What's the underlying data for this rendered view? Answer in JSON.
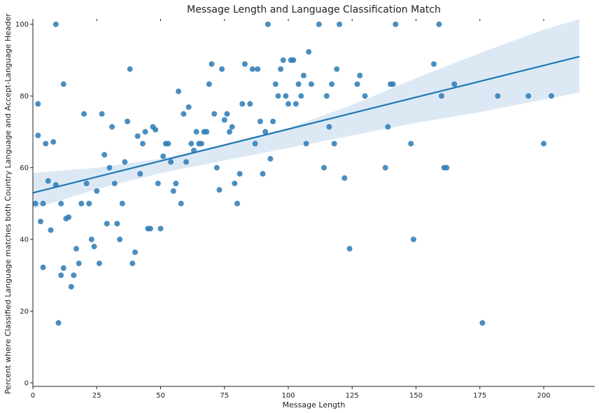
{
  "chart_data": {
    "type": "scatter",
    "title": "Message Length and Language Classification Match",
    "xlabel": "Message Length",
    "ylabel": "Percent where Classified Language matches both Country Language and Accept-Language Header",
    "xlim": [
      0,
      220
    ],
    "ylim": [
      -1,
      101.5
    ],
    "xticks": [
      0,
      25,
      50,
      75,
      100,
      125,
      150,
      175,
      200
    ],
    "yticks": [
      0,
      20,
      40,
      60,
      80,
      100
    ],
    "grid": false,
    "point_color": "#2a7ab5",
    "line_color": "#1f77b4",
    "band_color": "#dce9f5",
    "regression": {
      "x_range": [
        0,
        214
      ],
      "y_at_start": 53.0,
      "y_at_end": 91.0
    },
    "confidence_band": {
      "x": [
        0,
        25,
        50,
        75,
        100,
        125,
        150,
        175,
        200,
        214
      ],
      "lower": [
        48.5,
        54.0,
        58.5,
        62.0,
        65.5,
        69.0,
        72.5,
        75.5,
        79.0,
        81.0
      ],
      "upper": [
        58.5,
        60.0,
        62.5,
        66.5,
        71.0,
        77.5,
        85.0,
        92.0,
        98.5,
        101.5
      ]
    },
    "points": [
      [
        1,
        50
      ],
      [
        2,
        69
      ],
      [
        2,
        77.8
      ],
      [
        3,
        45
      ],
      [
        4,
        50
      ],
      [
        4,
        32.2
      ],
      [
        5,
        66.7
      ],
      [
        6,
        56.3
      ],
      [
        7,
        42.6
      ],
      [
        8,
        67.2
      ],
      [
        9,
        55.2
      ],
      [
        9,
        100
      ],
      [
        10,
        16.7
      ],
      [
        11,
        30
      ],
      [
        11,
        50
      ],
      [
        12,
        32
      ],
      [
        12,
        83.3
      ],
      [
        13,
        45.8
      ],
      [
        14,
        46.2
      ],
      [
        15,
        26.8
      ],
      [
        16,
        30
      ],
      [
        17,
        37.4
      ],
      [
        18,
        33.3
      ],
      [
        19,
        50
      ],
      [
        20,
        75
      ],
      [
        21,
        55.6
      ],
      [
        22,
        50
      ],
      [
        23,
        40
      ],
      [
        24,
        38
      ],
      [
        25,
        53.5
      ],
      [
        26,
        33.3
      ],
      [
        27,
        75
      ],
      [
        28,
        63.6
      ],
      [
        29,
        44.4
      ],
      [
        30,
        60
      ],
      [
        31,
        71.4
      ],
      [
        32,
        55.6
      ],
      [
        33,
        44.4
      ],
      [
        34,
        40
      ],
      [
        35,
        50
      ],
      [
        36,
        61.6
      ],
      [
        37,
        72.9
      ],
      [
        38,
        87.5
      ],
      [
        39,
        33.3
      ],
      [
        40,
        36.4
      ],
      [
        41,
        68.8
      ],
      [
        42,
        58.3
      ],
      [
        43,
        66.7
      ],
      [
        44,
        70
      ],
      [
        45,
        43
      ],
      [
        46,
        43
      ],
      [
        47,
        71.4
      ],
      [
        48,
        70.6
      ],
      [
        49,
        55.6
      ],
      [
        50,
        43
      ],
      [
        51,
        63.2
      ],
      [
        52,
        66.7
      ],
      [
        53,
        66.7
      ],
      [
        54,
        61.6
      ],
      [
        55,
        53.5
      ],
      [
        56,
        55.6
      ],
      [
        57,
        81.3
      ],
      [
        58,
        50
      ],
      [
        59,
        75
      ],
      [
        60,
        61.6
      ],
      [
        61,
        76.9
      ],
      [
        62,
        66.7
      ],
      [
        63,
        64.8
      ],
      [
        64,
        70
      ],
      [
        65,
        66.7
      ],
      [
        66,
        66.7
      ],
      [
        67,
        70
      ],
      [
        68,
        70
      ],
      [
        69,
        83.3
      ],
      [
        70,
        88.9
      ],
      [
        71,
        75
      ],
      [
        72,
        60
      ],
      [
        73,
        53.8
      ],
      [
        74,
        87.5
      ],
      [
        75,
        73.3
      ],
      [
        76,
        75
      ],
      [
        77,
        70
      ],
      [
        78,
        71.4
      ],
      [
        79,
        55.6
      ],
      [
        80,
        50
      ],
      [
        81,
        58.3
      ],
      [
        82,
        77.8
      ],
      [
        83,
        88.9
      ],
      [
        85,
        77.8
      ],
      [
        86,
        87.5
      ],
      [
        87,
        66.7
      ],
      [
        88,
        87.5
      ],
      [
        89,
        72.9
      ],
      [
        90,
        58.3
      ],
      [
        91,
        70
      ],
      [
        92,
        100
      ],
      [
        93,
        62.5
      ],
      [
        94,
        72.9
      ],
      [
        95,
        83.3
      ],
      [
        96,
        80
      ],
      [
        97,
        87.5
      ],
      [
        98,
        90
      ],
      [
        99,
        80
      ],
      [
        100,
        77.8
      ],
      [
        101,
        90
      ],
      [
        102,
        90
      ],
      [
        103,
        77.8
      ],
      [
        104,
        83.3
      ],
      [
        105,
        80
      ],
      [
        106,
        85.7
      ],
      [
        107,
        66.7
      ],
      [
        108,
        92.3
      ],
      [
        109,
        83.3
      ],
      [
        112,
        100
      ],
      [
        114,
        60
      ],
      [
        115,
        80
      ],
      [
        116,
        71.4
      ],
      [
        117,
        83.3
      ],
      [
        118,
        66.7
      ],
      [
        119,
        87.5
      ],
      [
        120,
        100
      ],
      [
        122,
        57.1
      ],
      [
        124,
        37.4
      ],
      [
        127,
        83.3
      ],
      [
        128,
        85.7
      ],
      [
        130,
        80
      ],
      [
        138,
        60
      ],
      [
        139,
        71.4
      ],
      [
        140,
        83.3
      ],
      [
        141,
        83.3
      ],
      [
        142,
        100
      ],
      [
        148,
        66.7
      ],
      [
        149,
        40
      ],
      [
        157,
        88.9
      ],
      [
        159,
        100
      ],
      [
        160,
        80
      ],
      [
        161,
        60
      ],
      [
        162,
        60
      ],
      [
        165,
        83.3
      ],
      [
        176,
        16.7
      ],
      [
        182,
        80
      ],
      [
        194,
        80
      ],
      [
        200,
        66.7
      ],
      [
        203,
        80
      ]
    ]
  }
}
